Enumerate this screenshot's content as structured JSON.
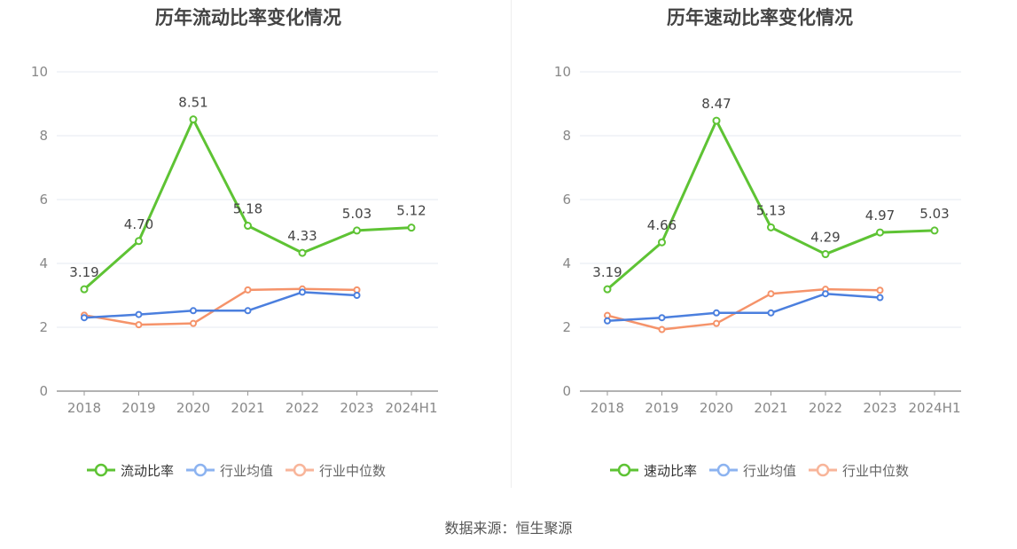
{
  "charts": [
    {
      "title": "历年流动比率变化情况",
      "legend": [
        "流动比率",
        "行业均值",
        "行业中位数"
      ]
    },
    {
      "title": "历年速动比率变化情况",
      "legend": [
        "速动比率",
        "行业均值",
        "行业中位数"
      ]
    }
  ],
  "source": "数据来源：恒生聚源",
  "colors": {
    "main": "#5ec334",
    "avg": "#4b7fde",
    "median": "#f5936a",
    "legend_avg": "#8cb3f0",
    "legend_median": "#f8b59a"
  },
  "chart_data": [
    {
      "type": "line",
      "title": "历年流动比率变化情况",
      "categories": [
        "2018",
        "2019",
        "2020",
        "2021",
        "2022",
        "2023",
        "2024H1"
      ],
      "ylim": [
        0,
        10
      ],
      "yticks": [
        0,
        2,
        4,
        6,
        8,
        10
      ],
      "grid": true,
      "legend_position": "bottom",
      "series": [
        {
          "name": "流动比率",
          "values": [
            3.19,
            4.7,
            8.51,
            5.18,
            4.33,
            5.03,
            5.12
          ],
          "labels": [
            "3.19",
            "4.70",
            "8.51",
            "5.18",
            "4.33",
            "5.03",
            "5.12"
          ]
        },
        {
          "name": "行业均值",
          "values": [
            2.3,
            2.4,
            2.52,
            2.52,
            3.1,
            3.0,
            null
          ]
        },
        {
          "name": "行业中位数",
          "values": [
            2.38,
            2.08,
            2.12,
            3.17,
            3.2,
            3.17,
            null
          ]
        }
      ]
    },
    {
      "type": "line",
      "title": "历年速动比率变化情况",
      "categories": [
        "2018",
        "2019",
        "2020",
        "2021",
        "2022",
        "2023",
        "2024H1"
      ],
      "ylim": [
        0,
        10
      ],
      "yticks": [
        0,
        2,
        4,
        6,
        8,
        10
      ],
      "grid": true,
      "legend_position": "bottom",
      "series": [
        {
          "name": "速动比率",
          "values": [
            3.19,
            4.66,
            8.47,
            5.13,
            4.29,
            4.97,
            5.03
          ],
          "labels": [
            "3.19",
            "4.66",
            "8.47",
            "5.13",
            "4.29",
            "4.97",
            "5.03"
          ]
        },
        {
          "name": "行业均值",
          "values": [
            2.2,
            2.3,
            2.45,
            2.45,
            3.05,
            2.93,
            null
          ]
        },
        {
          "name": "行业中位数",
          "values": [
            2.37,
            1.93,
            2.12,
            3.05,
            3.19,
            3.16,
            null
          ]
        }
      ]
    }
  ]
}
